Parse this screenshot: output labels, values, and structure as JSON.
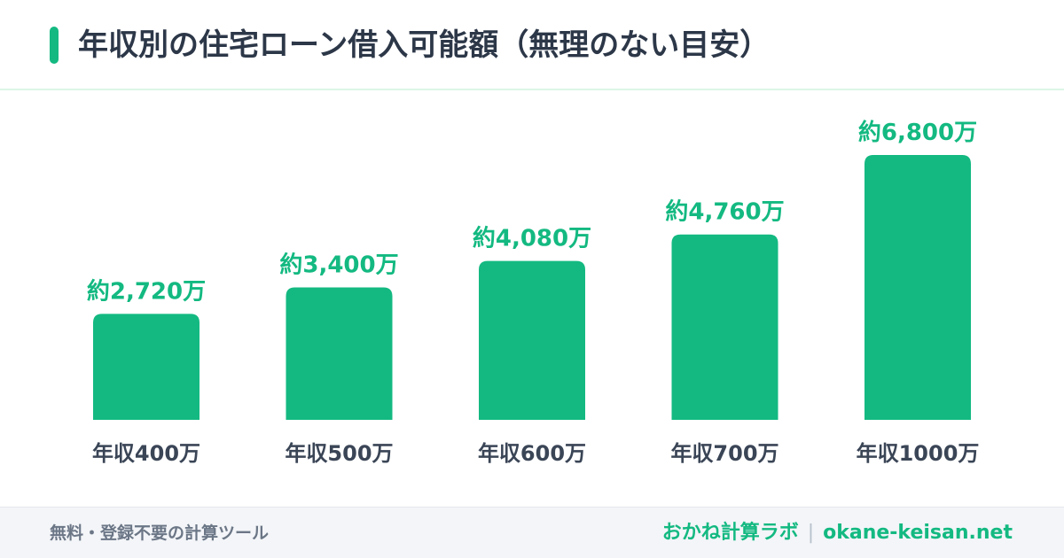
{
  "header": {
    "title": "年収別の住宅ローン借入可能額（無理のない目安）"
  },
  "colors": {
    "accent": "#13b981",
    "title": "#2c3748",
    "category_label": "#3a4556"
  },
  "chart_data": {
    "type": "bar",
    "title": "年収別の住宅ローン借入可能額（無理のない目安）",
    "categories": [
      "年収400万",
      "年収500万",
      "年収600万",
      "年収700万",
      "年収1000万"
    ],
    "values": [
      2720,
      3400,
      4080,
      4760,
      6800
    ],
    "data_labels": [
      "約2,720万",
      "約3,400万",
      "約4,080万",
      "約4,760万",
      "約6,800万"
    ],
    "xlabel": "",
    "ylabel": "",
    "ylim": [
      0,
      6800
    ],
    "grid": false,
    "legend": "none",
    "bar_color": "#13b981"
  },
  "footer": {
    "tagline": "無料・登録不要の計算ツール",
    "brand": "おかね計算ラボ",
    "separator": "|",
    "domain": "okane-keisan.net"
  }
}
